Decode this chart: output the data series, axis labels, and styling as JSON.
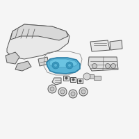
{
  "background_color": "#f5f5f5",
  "title": "",
  "highlight_color": "#5ab4d6",
  "highlight_edge": "#2a7fa8",
  "line_color": "#555555",
  "line_width": 0.7,
  "fig_width": 2.0,
  "fig_height": 2.0,
  "dpi": 100
}
